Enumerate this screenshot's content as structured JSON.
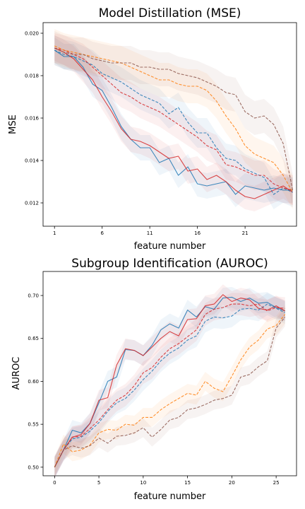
{
  "chart_data": [
    {
      "type": "line",
      "title": "Model Distillation (MSE)",
      "xlabel": "feature number",
      "ylabel": "MSE",
      "xlim": [
        -0.2,
        26.4
      ],
      "ylim": [
        0.0109,
        0.0205
      ],
      "xticks": [
        1,
        6,
        11,
        16,
        21
      ],
      "xtick_labels": [
        "1",
        "6",
        "11",
        "16",
        "21"
      ],
      "yticks": [
        0.012,
        0.014,
        0.016,
        0.018,
        0.02
      ],
      "ytick_labels": [
        "0.012",
        "0.014",
        "0.016",
        "0.018",
        "0.020"
      ],
      "grid": false,
      "legend": "none",
      "x": [
        1,
        2,
        3,
        4,
        5,
        6,
        7,
        8,
        9,
        10,
        11,
        12,
        13,
        14,
        15,
        16,
        17,
        18,
        19,
        20,
        21,
        22,
        23,
        24,
        25,
        26
      ],
      "series": [
        {
          "color": "#1f77b4",
          "dash": "solid",
          "band": 0.0006,
          "values": [
            0.0192,
            0.0189,
            0.0189,
            0.0184,
            0.0176,
            0.0173,
            0.0165,
            0.0156,
            0.015,
            0.0146,
            0.0146,
            0.0139,
            0.0141,
            0.0133,
            0.0137,
            0.0129,
            0.0128,
            0.0129,
            0.013,
            0.0124,
            0.0128,
            0.0127,
            0.0126,
            0.0127,
            0.0126,
            0.0126
          ]
        },
        {
          "color": "#d62728",
          "dash": "solid",
          "band": 0.0006,
          "values": [
            0.0193,
            0.0191,
            0.0188,
            0.0183,
            0.0178,
            0.017,
            0.0163,
            0.0155,
            0.015,
            0.0149,
            0.0147,
            0.0144,
            0.0141,
            0.0142,
            0.0135,
            0.0136,
            0.0131,
            0.0133,
            0.013,
            0.0126,
            0.0123,
            0.0122,
            0.0124,
            0.0126,
            0.0128,
            0.0125
          ]
        },
        {
          "color": "#1f77b4",
          "dash": "dashed",
          "band": 0.0007,
          "values": [
            0.0192,
            0.019,
            0.0189,
            0.0187,
            0.0185,
            0.0181,
            0.0179,
            0.0177,
            0.0174,
            0.0171,
            0.0169,
            0.0167,
            0.0162,
            0.0165,
            0.0158,
            0.0153,
            0.0153,
            0.0146,
            0.0141,
            0.014,
            0.0136,
            0.0134,
            0.0132,
            0.0124,
            0.0127,
            0.0125
          ]
        },
        {
          "color": "#d62728",
          "dash": "dashed",
          "band": 0.0007,
          "values": [
            0.0193,
            0.0192,
            0.019,
            0.0188,
            0.0184,
            0.018,
            0.0176,
            0.0172,
            0.017,
            0.0167,
            0.0165,
            0.0163,
            0.016,
            0.0157,
            0.0154,
            0.0151,
            0.0147,
            0.0145,
            0.0138,
            0.0137,
            0.0135,
            0.0133,
            0.0133,
            0.0129,
            0.0127,
            0.0126
          ]
        },
        {
          "color": "#ff7f0e",
          "dash": "dashed",
          "band": 0.0008,
          "values": [
            0.0194,
            0.0192,
            0.0191,
            0.019,
            0.0189,
            0.0188,
            0.0187,
            0.0186,
            0.0184,
            0.0182,
            0.018,
            0.0178,
            0.0178,
            0.0176,
            0.0175,
            0.0175,
            0.0173,
            0.0168,
            0.0161,
            0.0155,
            0.0147,
            0.0143,
            0.0141,
            0.0139,
            0.0133,
            0.0125
          ]
        },
        {
          "color": "#8c564b",
          "dash": "dashed",
          "band": 0.0008,
          "values": [
            0.0193,
            0.0191,
            0.019,
            0.019,
            0.0188,
            0.0187,
            0.0186,
            0.0186,
            0.0186,
            0.0184,
            0.0184,
            0.0183,
            0.0183,
            0.0181,
            0.018,
            0.0179,
            0.0177,
            0.0175,
            0.0172,
            0.0171,
            0.0163,
            0.016,
            0.0161,
            0.0157,
            0.0148,
            0.0126
          ]
        }
      ]
    },
    {
      "type": "line",
      "title": "Subgroup Identification (AUROC)",
      "xlabel": "feature number",
      "ylabel": "AUROC",
      "xlim": [
        -1.3,
        27.3
      ],
      "ylim": [
        0.49,
        0.728
      ],
      "xticks": [
        0,
        5,
        10,
        15,
        20,
        25
      ],
      "xtick_labels": [
        "0",
        "5",
        "10",
        "15",
        "20",
        "25"
      ],
      "yticks": [
        0.5,
        0.55,
        0.6,
        0.65,
        0.7
      ],
      "ytick_labels": [
        "0.50",
        "0.55",
        "0.60",
        "0.65",
        "0.70"
      ],
      "grid": false,
      "legend": "none",
      "x": [
        0,
        1,
        2,
        3,
        4,
        5,
        6,
        7,
        8,
        9,
        10,
        11,
        12,
        13,
        14,
        15,
        16,
        17,
        18,
        19,
        20,
        21,
        22,
        23,
        24,
        25,
        26
      ],
      "series": [
        {
          "color": "#1f77b4",
          "dash": "solid",
          "band": 0.012,
          "values": [
            0.5,
            0.52,
            0.543,
            0.54,
            0.551,
            0.575,
            0.6,
            0.605,
            0.637,
            0.636,
            0.63,
            0.642,
            0.66,
            0.667,
            0.662,
            0.683,
            0.675,
            0.687,
            0.684,
            0.697,
            0.698,
            0.693,
            0.697,
            0.691,
            0.692,
            0.686,
            0.682
          ]
        },
        {
          "color": "#d62728",
          "dash": "solid",
          "band": 0.012,
          "values": [
            0.5,
            0.52,
            0.535,
            0.538,
            0.551,
            0.578,
            0.581,
            0.619,
            0.638,
            0.636,
            0.63,
            0.64,
            0.65,
            0.658,
            0.653,
            0.672,
            0.673,
            0.688,
            0.69,
            0.701,
            0.693,
            0.697,
            0.695,
            0.685,
            0.683,
            0.688,
            0.682
          ]
        },
        {
          "color": "#1f77b4",
          "dash": "dashed",
          "band": 0.013,
          "values": [
            0.5,
            0.52,
            0.533,
            0.535,
            0.542,
            0.552,
            0.565,
            0.575,
            0.58,
            0.59,
            0.602,
            0.612,
            0.624,
            0.633,
            0.639,
            0.648,
            0.653,
            0.67,
            0.675,
            0.674,
            0.676,
            0.684,
            0.685,
            0.683,
            0.69,
            0.685,
            0.68
          ]
        },
        {
          "color": "#d62728",
          "dash": "dashed",
          "band": 0.013,
          "values": [
            0.5,
            0.52,
            0.535,
            0.536,
            0.545,
            0.555,
            0.567,
            0.578,
            0.584,
            0.595,
            0.61,
            0.616,
            0.628,
            0.638,
            0.644,
            0.652,
            0.66,
            0.678,
            0.684,
            0.686,
            0.69,
            0.69,
            0.688,
            0.69,
            0.682,
            0.686,
            0.685
          ]
        },
        {
          "color": "#ff7f0e",
          "dash": "dashed",
          "band": 0.011,
          "values": [
            0.5,
            0.527,
            0.518,
            0.52,
            0.526,
            0.54,
            0.544,
            0.543,
            0.55,
            0.549,
            0.558,
            0.558,
            0.567,
            0.574,
            0.58,
            0.586,
            0.584,
            0.6,
            0.592,
            0.588,
            0.606,
            0.625,
            0.64,
            0.648,
            0.661,
            0.665,
            0.678
          ]
        },
        {
          "color": "#8c564b",
          "dash": "dashed",
          "band": 0.011,
          "values": [
            0.5,
            0.52,
            0.525,
            0.522,
            0.525,
            0.534,
            0.528,
            0.536,
            0.537,
            0.54,
            0.546,
            0.535,
            0.544,
            0.555,
            0.558,
            0.567,
            0.569,
            0.573,
            0.578,
            0.58,
            0.584,
            0.605,
            0.608,
            0.617,
            0.624,
            0.662,
            0.675
          ]
        }
      ]
    }
  ]
}
